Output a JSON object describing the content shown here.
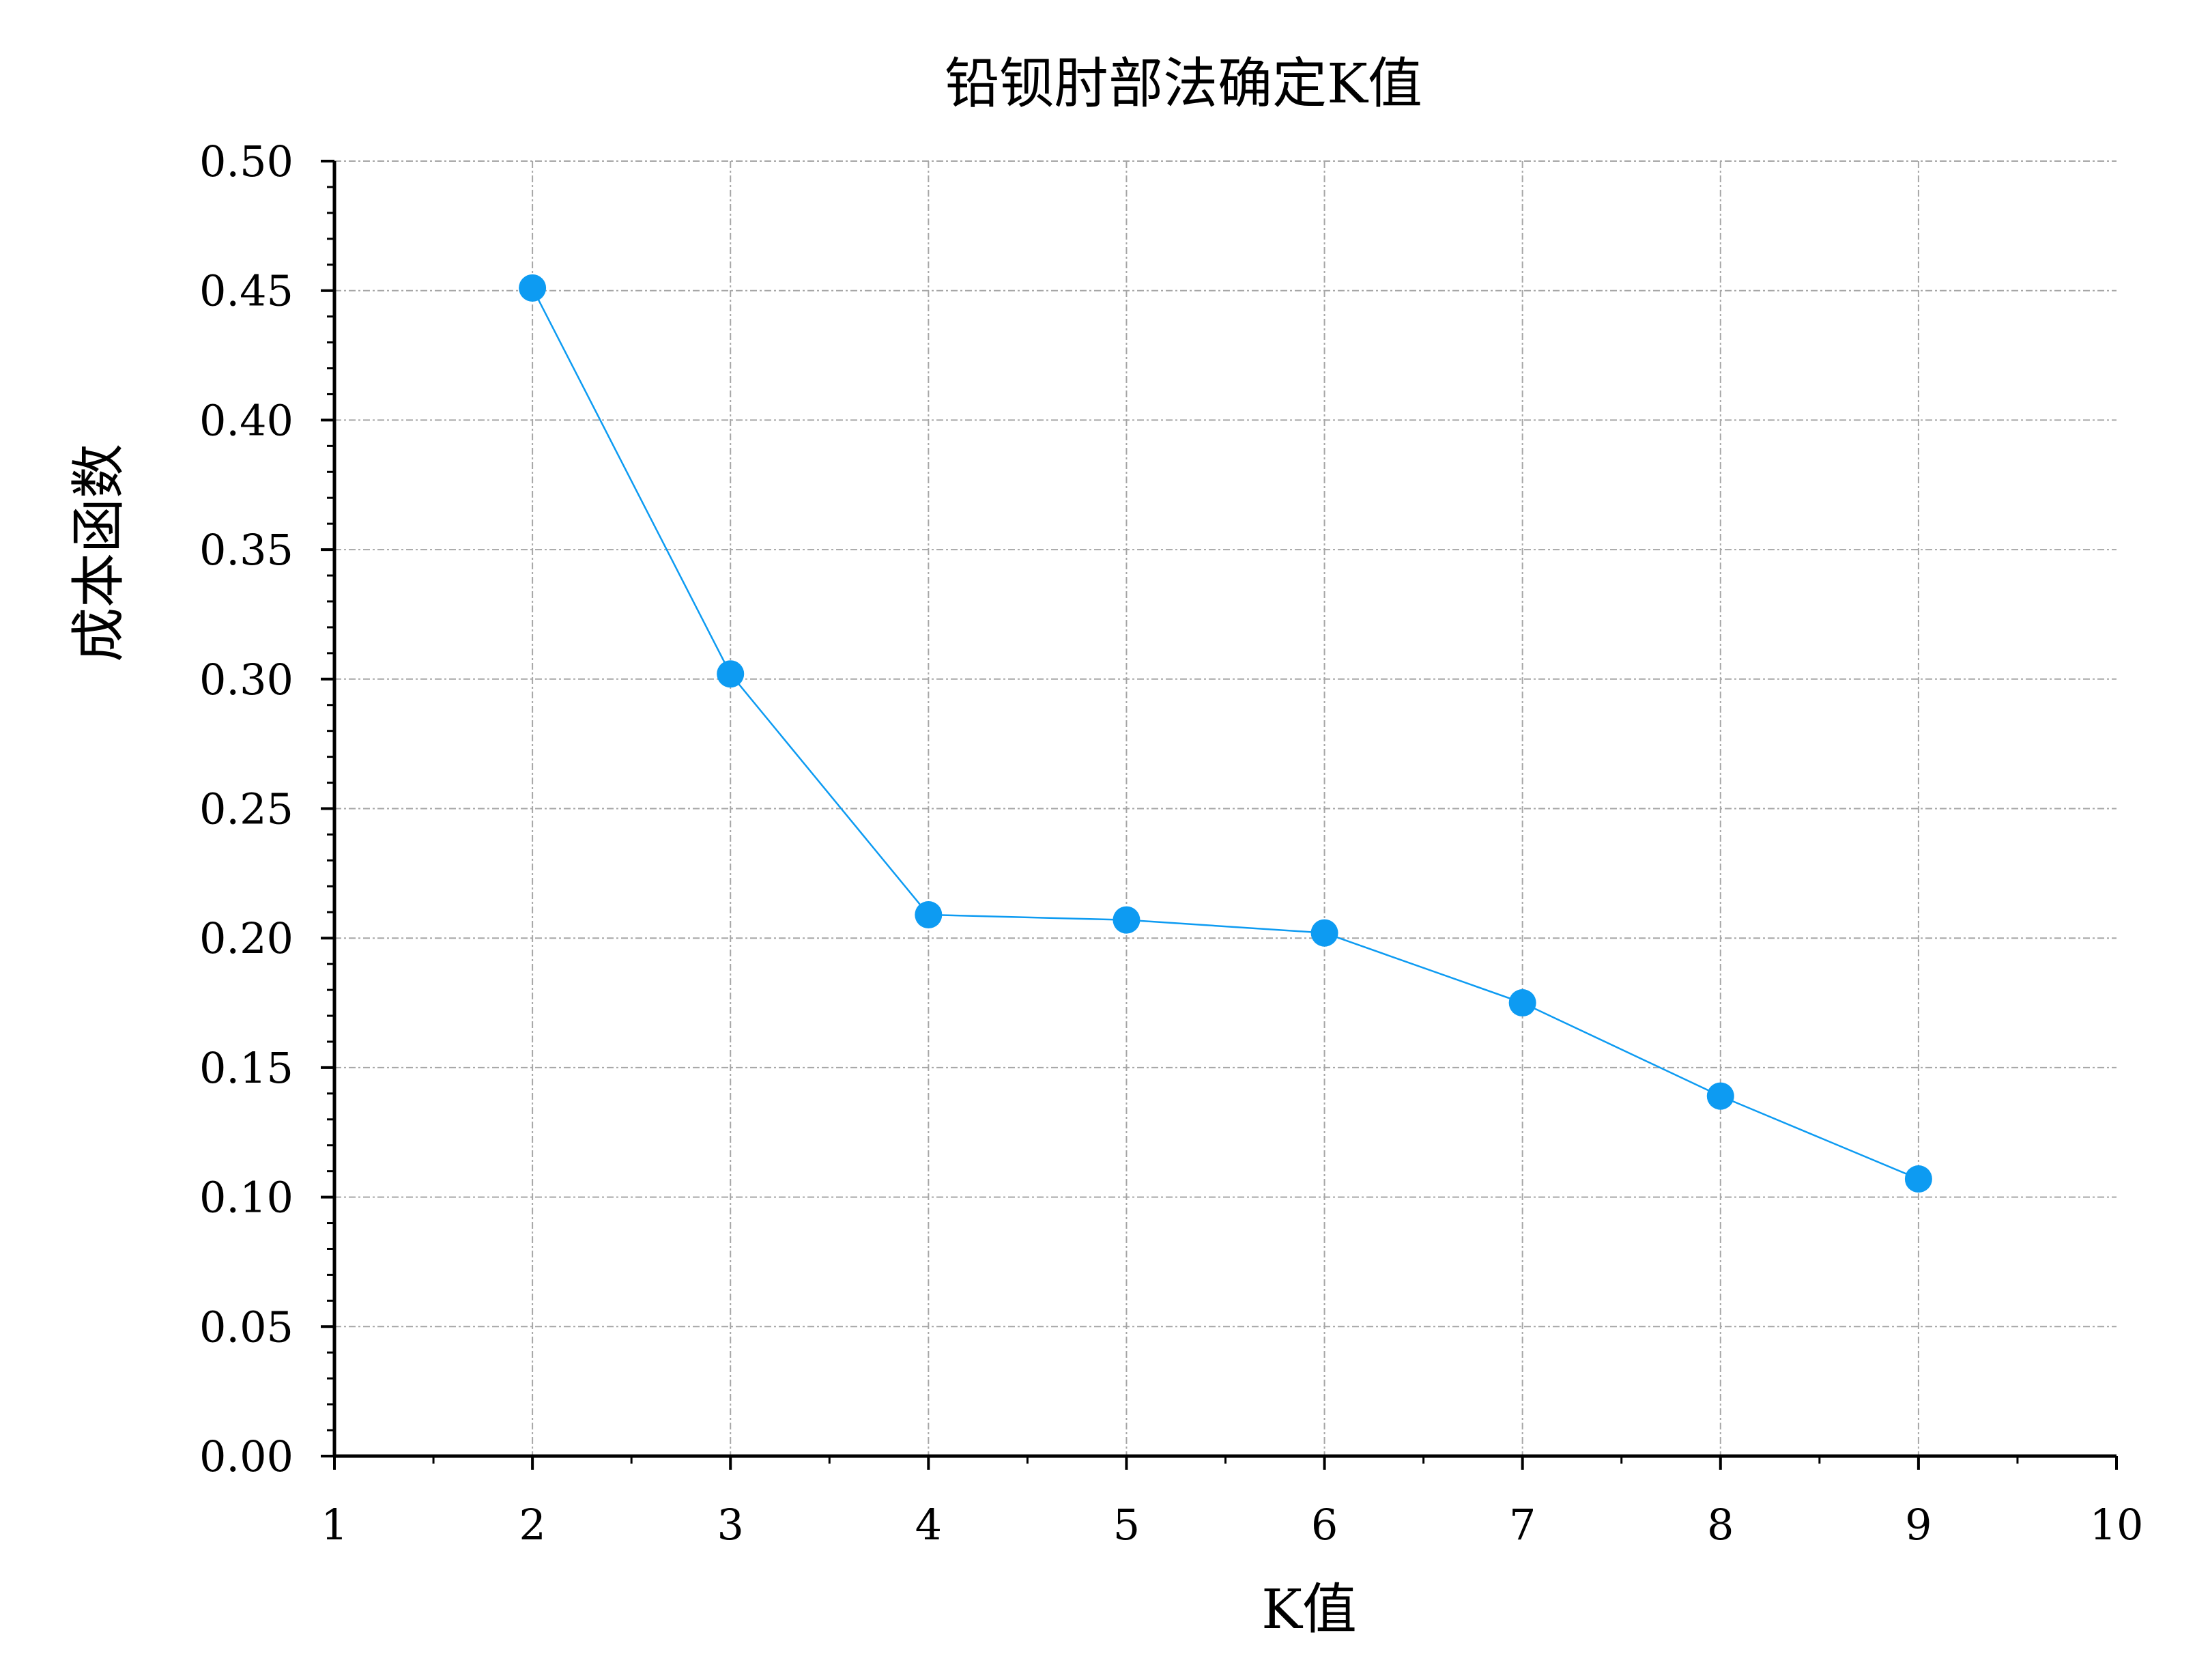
{
  "chart_data": {
    "type": "line",
    "title": "铅钡肘部法确定K值",
    "xlabel": "K值",
    "ylabel": "成本函数",
    "xlim": [
      1,
      10
    ],
    "ylim": [
      0,
      0.5
    ],
    "x_ticks": [
      "1",
      "2",
      "3",
      "4",
      "5",
      "6",
      "7",
      "8",
      "9",
      "10"
    ],
    "y_ticks": [
      "0.00",
      "0.05",
      "0.10",
      "0.15",
      "0.20",
      "0.25",
      "0.30",
      "0.35",
      "0.40",
      "0.45",
      "0.50"
    ],
    "grid": true,
    "series": [
      {
        "x": [
          2,
          3,
          4,
          5,
          6,
          7,
          8,
          9
        ],
        "values": [
          0.451,
          0.302,
          0.209,
          0.207,
          0.202,
          0.175,
          0.139,
          0.107
        ],
        "color": "#0d9bf2"
      }
    ]
  }
}
